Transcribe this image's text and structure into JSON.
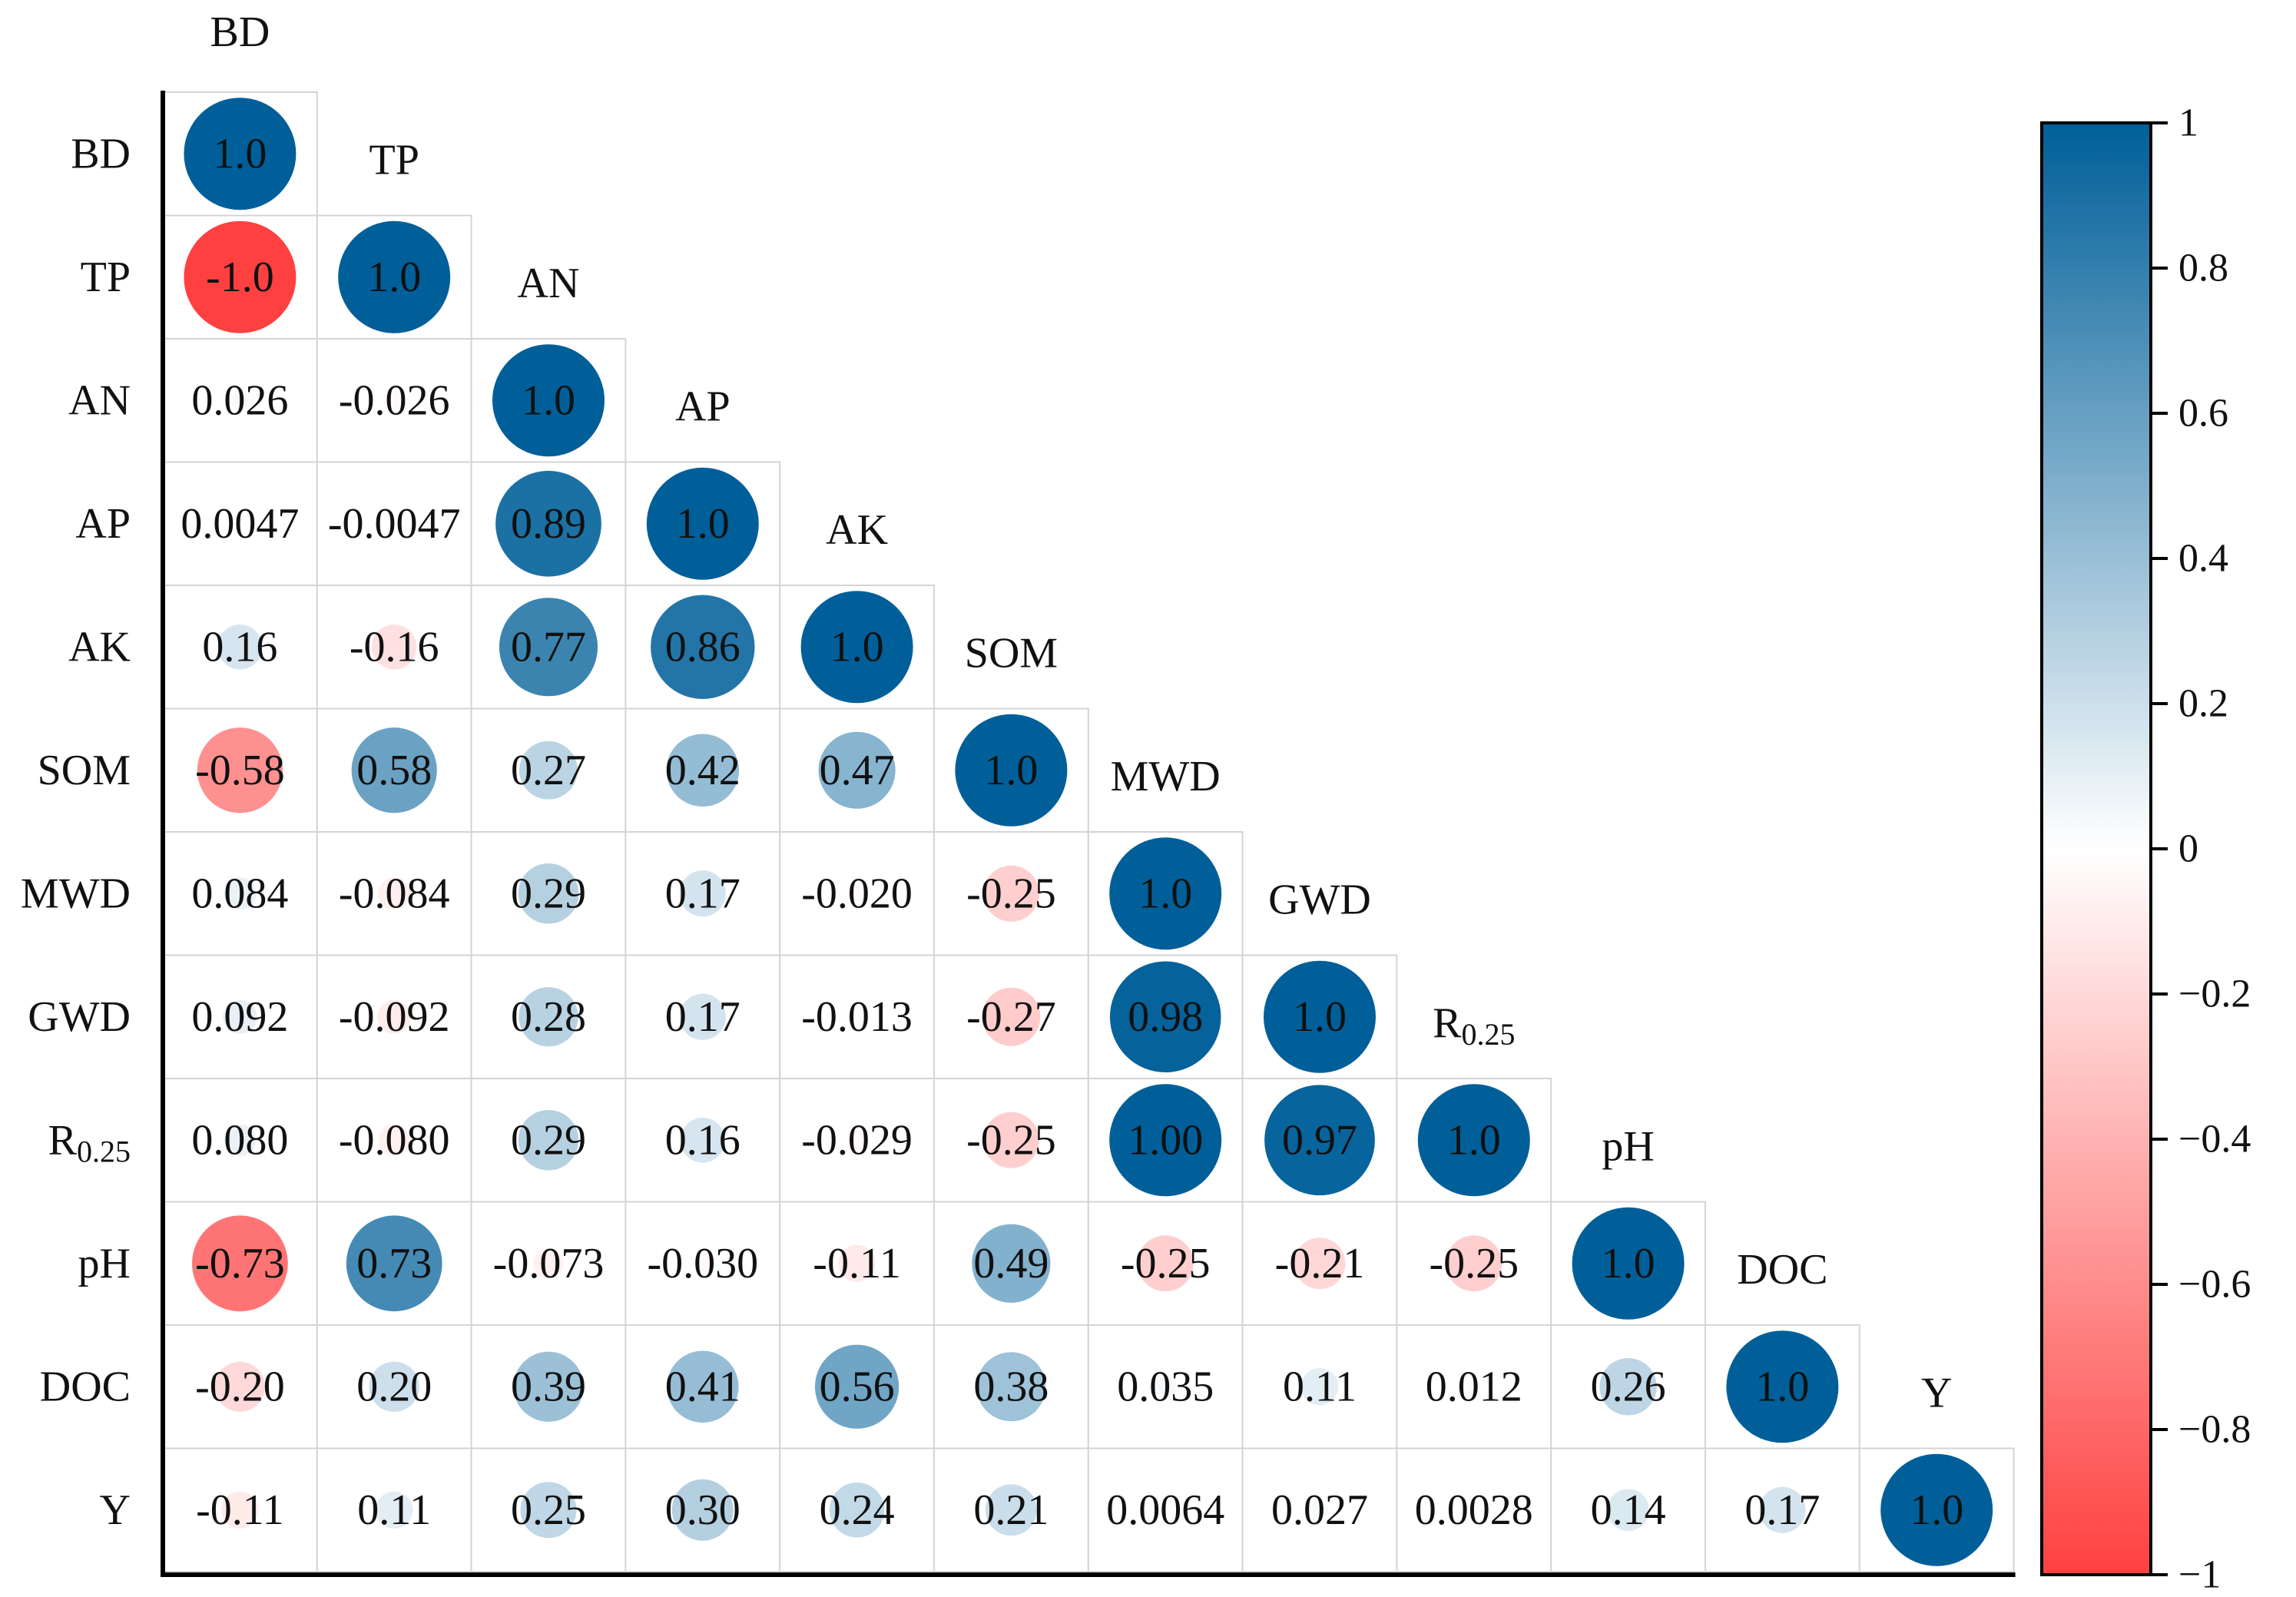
{
  "chart_data": {
    "type": "heatmap",
    "subtype": "lower-triangular correlation matrix (circle size and color encode r)",
    "variables": [
      "BD",
      "TP",
      "AN",
      "AP",
      "AK",
      "SOM",
      "MWD",
      "GWD",
      "R0.25",
      "pH",
      "DOC",
      "Y"
    ],
    "variable_labels": [
      {
        "main": "BD",
        "sub": ""
      },
      {
        "main": "TP",
        "sub": ""
      },
      {
        "main": "AN",
        "sub": ""
      },
      {
        "main": "AP",
        "sub": ""
      },
      {
        "main": "AK",
        "sub": ""
      },
      {
        "main": "SOM",
        "sub": ""
      },
      {
        "main": "MWD",
        "sub": ""
      },
      {
        "main": "GWD",
        "sub": ""
      },
      {
        "main": "R",
        "sub": "0.25"
      },
      {
        "main": "pH",
        "sub": ""
      },
      {
        "main": "DOC",
        "sub": ""
      },
      {
        "main": "Y",
        "sub": ""
      }
    ],
    "values": [
      [
        1.0
      ],
      [
        -1.0,
        1.0
      ],
      [
        0.026,
        -0.026,
        1.0
      ],
      [
        0.0047,
        -0.0047,
        0.89,
        1.0
      ],
      [
        0.16,
        -0.16,
        0.77,
        0.86,
        1.0
      ],
      [
        -0.58,
        0.58,
        0.27,
        0.42,
        0.47,
        1.0
      ],
      [
        0.084,
        -0.084,
        0.29,
        0.17,
        -0.02,
        -0.25,
        1.0
      ],
      [
        0.092,
        -0.092,
        0.28,
        0.17,
        -0.013,
        -0.27,
        0.98,
        1.0
      ],
      [
        0.08,
        -0.08,
        0.29,
        0.16,
        -0.029,
        -0.25,
        1.0,
        0.97,
        1.0
      ],
      [
        -0.73,
        0.73,
        -0.073,
        -0.03,
        -0.11,
        0.49,
        -0.25,
        -0.21,
        -0.25,
        1.0
      ],
      [
        -0.2,
        0.2,
        0.39,
        0.41,
        0.56,
        0.38,
        0.035,
        0.11,
        0.012,
        0.26,
        1.0
      ],
      [
        -0.11,
        0.11,
        0.25,
        0.3,
        0.24,
        0.21,
        0.0064,
        0.027,
        0.0028,
        0.14,
        0.17,
        1.0
      ]
    ],
    "value_labels": [
      [
        "1.0"
      ],
      [
        "-1.0",
        "1.0"
      ],
      [
        "0.026",
        "-0.026",
        "1.0"
      ],
      [
        "0.0047",
        "-0.0047",
        "0.89",
        "1.0"
      ],
      [
        "0.16",
        "-0.16",
        "0.77",
        "0.86",
        "1.0"
      ],
      [
        "-0.58",
        "0.58",
        "0.27",
        "0.42",
        "0.47",
        "1.0"
      ],
      [
        "0.084",
        "-0.084",
        "0.29",
        "0.17",
        "-0.020",
        "-0.25",
        "1.0"
      ],
      [
        "0.092",
        "-0.092",
        "0.28",
        "0.17",
        "-0.013",
        "-0.27",
        "0.98",
        "1.0"
      ],
      [
        "0.080",
        "-0.080",
        "0.29",
        "0.16",
        "-0.029",
        "-0.25",
        "1.00",
        "0.97",
        "1.0"
      ],
      [
        "-0.73",
        "0.73",
        "-0.073",
        "-0.030",
        "-0.11",
        "0.49",
        "-0.25",
        "-0.21",
        "-0.25",
        "1.0"
      ],
      [
        "-0.20",
        "0.20",
        "0.39",
        "0.41",
        "0.56",
        "0.38",
        "0.035",
        "0.11",
        "0.012",
        "0.26",
        "1.0"
      ],
      [
        "-0.11",
        "0.11",
        "0.25",
        "0.30",
        "0.24",
        "0.21",
        "0.0064",
        "0.027",
        "0.0028",
        "0.14",
        "0.17",
        "1.0"
      ]
    ],
    "colorbar": {
      "range": [
        -1,
        1
      ],
      "ticks": [
        1,
        0.8,
        0.6,
        0.4,
        0.2,
        0,
        -0.2,
        -0.4,
        -0.6,
        -0.8,
        -1
      ],
      "tick_labels": [
        "1",
        "0.8",
        "0.6",
        "0.4",
        "0.2",
        "0",
        "−0.2",
        "−0.4",
        "−0.6",
        "−0.8",
        "−1"
      ],
      "placement": "right"
    },
    "colors": {
      "positive": "#005f99",
      "zero": "#ffffff",
      "negative": "#ff4040"
    },
    "title": "",
    "xlabel": "",
    "ylabel": ""
  }
}
